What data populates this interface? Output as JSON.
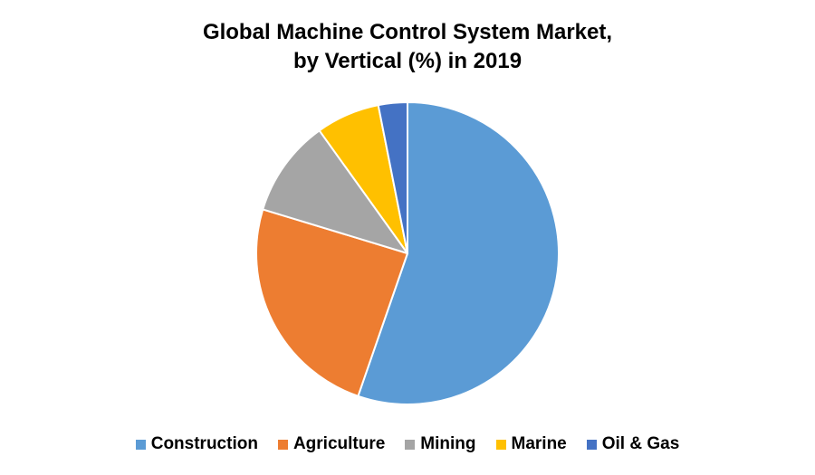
{
  "chart_data": {
    "type": "pie",
    "title": [
      "Global Machine Control System Market,",
      "by Vertical (%) in 2019"
    ],
    "categories": [
      "Construction",
      "Agriculture",
      "Mining",
      "Marine",
      "Oil & Gas"
    ],
    "values": [
      55.3,
      24.4,
      10.4,
      6.8,
      3.1
    ],
    "colors": [
      "#5B9BD5",
      "#ED7D31",
      "#A5A5A5",
      "#FFC000",
      "#4472C4"
    ],
    "legend": "bottom"
  }
}
